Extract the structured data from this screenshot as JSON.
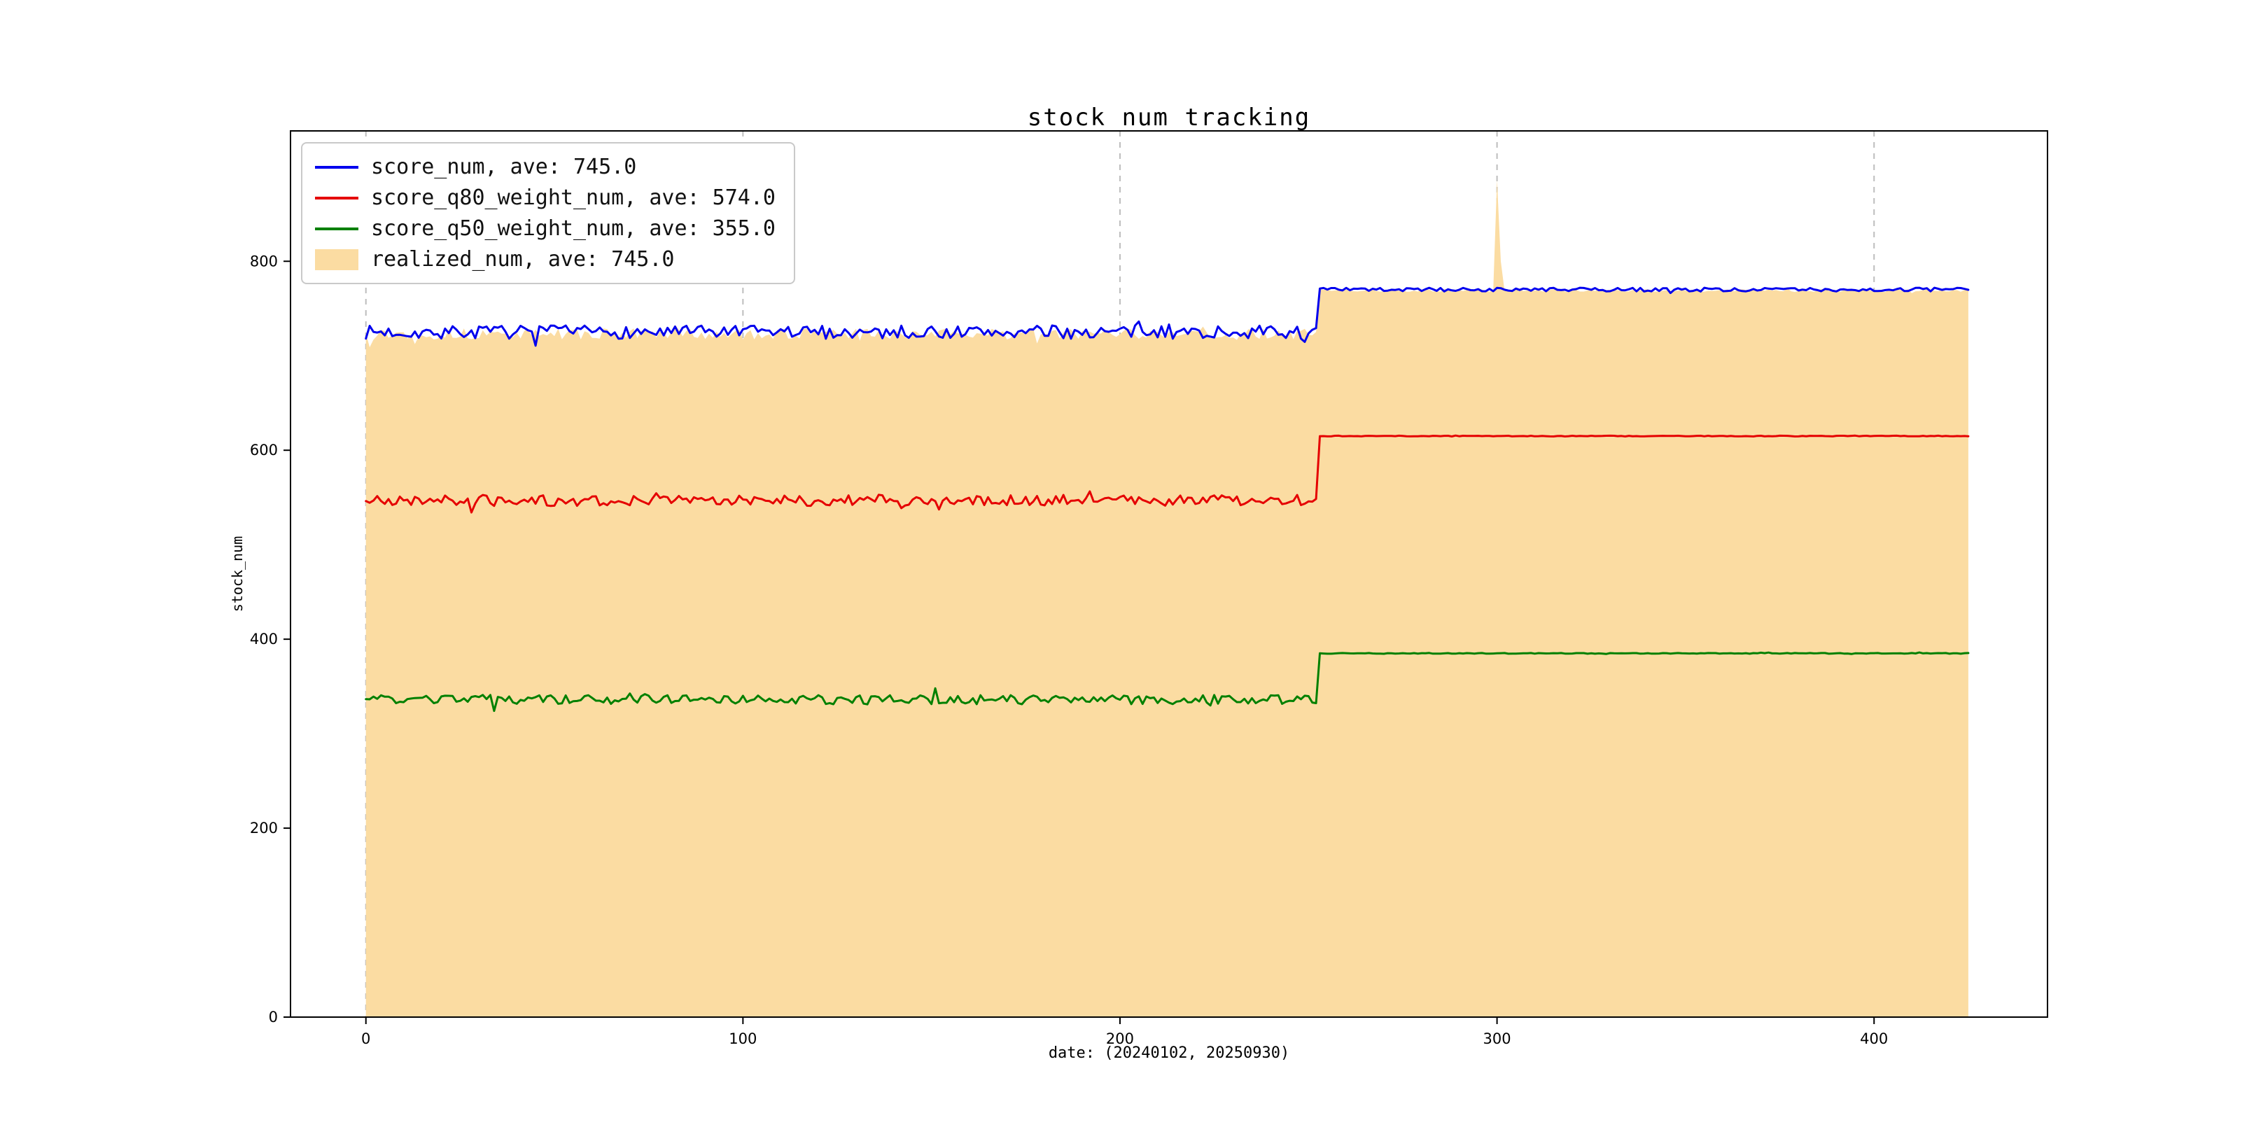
{
  "page": {
    "background": "#ffffff"
  },
  "chart_data": {
    "type": "line",
    "title": "stock num tracking",
    "xlabel": "date: (20240102, 20250930)",
    "ylabel": "stock_num",
    "xlim": [
      -20,
      446
    ],
    "ylim": [
      0,
      938
    ],
    "xticks": [
      0,
      100,
      200,
      300,
      400
    ],
    "yticks": [
      0,
      200,
      400,
      600,
      800
    ],
    "grid": {
      "axis": "x",
      "style": "dashed",
      "color": "#bdbdbd"
    },
    "legend_position": "upper-left",
    "series": [
      {
        "name": "score_num, ave: 745.0",
        "color": "#0000ee",
        "seed": 7,
        "segments": [
          {
            "x0": 0,
            "x1": 252,
            "base": 725,
            "noise": 7
          },
          {
            "x0": 253,
            "x1": 425,
            "base": 770,
            "noise": 2
          }
        ]
      },
      {
        "name": "score_q80_weight_num, ave: 574.0",
        "color": "#e50000",
        "seed": 21,
        "segments": [
          {
            "x0": 0,
            "x1": 252,
            "base": 547,
            "noise": 6
          },
          {
            "x0": 253,
            "x1": 425,
            "base": 615,
            "noise": 0.4
          }
        ]
      },
      {
        "name": "score_q50_weight_num, ave: 355.0",
        "color": "#008000",
        "seed": 33,
        "segments": [
          {
            "x0": 0,
            "x1": 252,
            "base": 336,
            "noise": 5
          },
          {
            "x0": 253,
            "x1": 425,
            "base": 385,
            "noise": 0.4
          }
        ]
      }
    ],
    "area": {
      "name": "realized_num, ave: 745.0",
      "color": "#fbdca2",
      "seed": 13,
      "segments": [
        {
          "x0": 0,
          "x1": 252,
          "base": 723,
          "noise": 6
        },
        {
          "x0": 253,
          "x1": 425,
          "base": 769,
          "noise": 1.5
        }
      ],
      "spikes": [
        {
          "x": 300,
          "y": 886
        },
        {
          "x": 301,
          "y": 800
        }
      ]
    }
  }
}
